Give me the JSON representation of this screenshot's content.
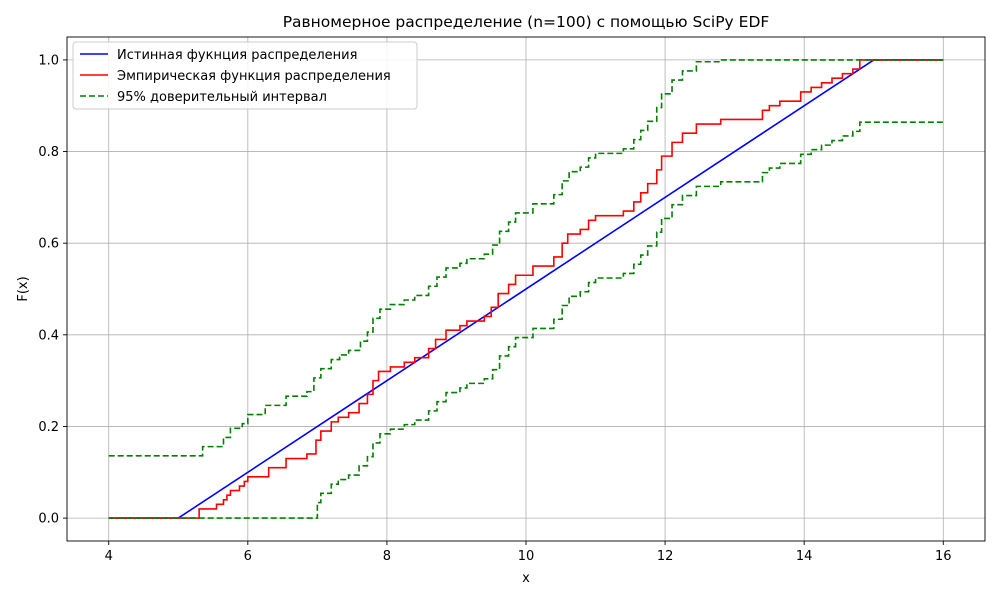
{
  "chart_data": {
    "type": "line",
    "title": "Равномерное распределение (n=100) с помощью SciPy EDF",
    "xlabel": "x",
    "ylabel": "F(x)",
    "xlim": [
      3.4,
      16.6
    ],
    "ylim": [
      -0.05,
      1.05
    ],
    "xticks": [
      4,
      6,
      8,
      10,
      12,
      14,
      16
    ],
    "yticks": [
      0.0,
      0.2,
      0.4,
      0.6,
      0.8,
      1.0
    ],
    "grid": true,
    "legend_position": "top-left",
    "series": [
      {
        "name": "Истинная фукнция распределения",
        "color": "#0000ff",
        "style": "solid",
        "points": [
          [
            4,
            0
          ],
          [
            5,
            0
          ],
          [
            15,
            1
          ],
          [
            16,
            1
          ]
        ]
      },
      {
        "name": "Эмпирическая функция распределения",
        "color": "#ff0000",
        "style": "step",
        "points": [
          [
            4,
            0
          ],
          [
            5.25,
            0
          ],
          [
            5.3,
            0.02
          ],
          [
            5.5,
            0.02
          ],
          [
            5.55,
            0.03
          ],
          [
            5.65,
            0.04
          ],
          [
            5.7,
            0.05
          ],
          [
            5.75,
            0.06
          ],
          [
            5.88,
            0.07
          ],
          [
            5.95,
            0.08
          ],
          [
            6.0,
            0.09
          ],
          [
            6.3,
            0.11
          ],
          [
            6.55,
            0.13
          ],
          [
            6.85,
            0.14
          ],
          [
            6.98,
            0.17
          ],
          [
            7.05,
            0.19
          ],
          [
            7.2,
            0.21
          ],
          [
            7.3,
            0.22
          ],
          [
            7.45,
            0.23
          ],
          [
            7.6,
            0.25
          ],
          [
            7.72,
            0.27
          ],
          [
            7.8,
            0.3
          ],
          [
            7.88,
            0.32
          ],
          [
            8.05,
            0.33
          ],
          [
            8.25,
            0.34
          ],
          [
            8.4,
            0.35
          ],
          [
            8.6,
            0.37
          ],
          [
            8.7,
            0.39
          ],
          [
            8.85,
            0.41
          ],
          [
            9.05,
            0.42
          ],
          [
            9.15,
            0.43
          ],
          [
            9.4,
            0.44
          ],
          [
            9.5,
            0.46
          ],
          [
            9.6,
            0.49
          ],
          [
            9.75,
            0.51
          ],
          [
            9.85,
            0.53
          ],
          [
            10.1,
            0.55
          ],
          [
            10.4,
            0.57
          ],
          [
            10.52,
            0.6
          ],
          [
            10.6,
            0.62
          ],
          [
            10.78,
            0.63
          ],
          [
            10.9,
            0.65
          ],
          [
            11.0,
            0.66
          ],
          [
            11.4,
            0.67
          ],
          [
            11.55,
            0.69
          ],
          [
            11.65,
            0.71
          ],
          [
            11.75,
            0.73
          ],
          [
            11.88,
            0.76
          ],
          [
            11.95,
            0.79
          ],
          [
            12.1,
            0.82
          ],
          [
            12.25,
            0.84
          ],
          [
            12.45,
            0.86
          ],
          [
            12.8,
            0.87
          ],
          [
            13.4,
            0.89
          ],
          [
            13.5,
            0.9
          ],
          [
            13.65,
            0.91
          ],
          [
            13.95,
            0.93
          ],
          [
            14.1,
            0.94
          ],
          [
            14.25,
            0.95
          ],
          [
            14.4,
            0.96
          ],
          [
            14.55,
            0.97
          ],
          [
            14.7,
            0.98
          ],
          [
            14.8,
            1.0
          ],
          [
            16,
            1.0
          ]
        ]
      },
      {
        "name": "95% доверительный интервал",
        "color": "#008000",
        "style": "dashed",
        "points": [
          [
            4,
            0.136
          ],
          [
            5.25,
            0.136
          ],
          [
            5.35,
            0.156
          ],
          [
            5.55,
            0.156
          ],
          [
            5.65,
            0.176
          ],
          [
            5.75,
            0.196
          ],
          [
            5.92,
            0.206
          ],
          [
            6.0,
            0.226
          ],
          [
            6.25,
            0.246
          ],
          [
            6.55,
            0.266
          ],
          [
            6.85,
            0.276
          ],
          [
            6.95,
            0.306
          ],
          [
            7.05,
            0.326
          ],
          [
            7.2,
            0.346
          ],
          [
            7.32,
            0.356
          ],
          [
            7.45,
            0.366
          ],
          [
            7.62,
            0.386
          ],
          [
            7.72,
            0.406
          ],
          [
            7.8,
            0.436
          ],
          [
            7.9,
            0.456
          ],
          [
            8.05,
            0.466
          ],
          [
            8.25,
            0.476
          ],
          [
            8.4,
            0.486
          ],
          [
            8.6,
            0.506
          ],
          [
            8.72,
            0.526
          ],
          [
            8.85,
            0.546
          ],
          [
            9.05,
            0.556
          ],
          [
            9.15,
            0.566
          ],
          [
            9.4,
            0.576
          ],
          [
            9.52,
            0.596
          ],
          [
            9.62,
            0.626
          ],
          [
            9.75,
            0.646
          ],
          [
            9.85,
            0.666
          ],
          [
            10.1,
            0.686
          ],
          [
            10.4,
            0.706
          ],
          [
            10.52,
            0.736
          ],
          [
            10.62,
            0.756
          ],
          [
            10.78,
            0.766
          ],
          [
            10.9,
            0.786
          ],
          [
            11.0,
            0.796
          ],
          [
            11.4,
            0.806
          ],
          [
            11.55,
            0.826
          ],
          [
            11.65,
            0.846
          ],
          [
            11.75,
            0.866
          ],
          [
            11.88,
            0.896
          ],
          [
            11.95,
            0.926
          ],
          [
            12.1,
            0.956
          ],
          [
            12.25,
            0.976
          ],
          [
            12.45,
            0.996
          ],
          [
            12.8,
            1.0
          ],
          [
            16,
            1.0
          ]
        ]
      },
      {
        "name": "",
        "color": "#008000",
        "style": "dashed",
        "points": [
          [
            4,
            0.0
          ],
          [
            6.9,
            0.0
          ],
          [
            7.0,
            0.034
          ],
          [
            7.05,
            0.054
          ],
          [
            7.2,
            0.074
          ],
          [
            7.3,
            0.084
          ],
          [
            7.45,
            0.094
          ],
          [
            7.6,
            0.114
          ],
          [
            7.72,
            0.134
          ],
          [
            7.8,
            0.164
          ],
          [
            7.9,
            0.184
          ],
          [
            8.05,
            0.194
          ],
          [
            8.25,
            0.204
          ],
          [
            8.4,
            0.214
          ],
          [
            8.6,
            0.234
          ],
          [
            8.72,
            0.254
          ],
          [
            8.85,
            0.274
          ],
          [
            9.05,
            0.284
          ],
          [
            9.15,
            0.294
          ],
          [
            9.4,
            0.304
          ],
          [
            9.52,
            0.324
          ],
          [
            9.62,
            0.354
          ],
          [
            9.75,
            0.374
          ],
          [
            9.85,
            0.394
          ],
          [
            10.1,
            0.414
          ],
          [
            10.4,
            0.434
          ],
          [
            10.52,
            0.464
          ],
          [
            10.62,
            0.484
          ],
          [
            10.78,
            0.494
          ],
          [
            10.9,
            0.514
          ],
          [
            11.0,
            0.524
          ],
          [
            11.4,
            0.534
          ],
          [
            11.55,
            0.554
          ],
          [
            11.65,
            0.574
          ],
          [
            11.75,
            0.594
          ],
          [
            11.88,
            0.624
          ],
          [
            11.95,
            0.654
          ],
          [
            12.1,
            0.684
          ],
          [
            12.25,
            0.704
          ],
          [
            12.45,
            0.724
          ],
          [
            12.8,
            0.734
          ],
          [
            13.4,
            0.754
          ],
          [
            13.5,
            0.764
          ],
          [
            13.65,
            0.774
          ],
          [
            13.95,
            0.794
          ],
          [
            14.1,
            0.804
          ],
          [
            14.25,
            0.814
          ],
          [
            14.4,
            0.824
          ],
          [
            14.55,
            0.834
          ],
          [
            14.7,
            0.844
          ],
          [
            14.8,
            0.864
          ],
          [
            16,
            0.864
          ]
        ]
      }
    ]
  }
}
